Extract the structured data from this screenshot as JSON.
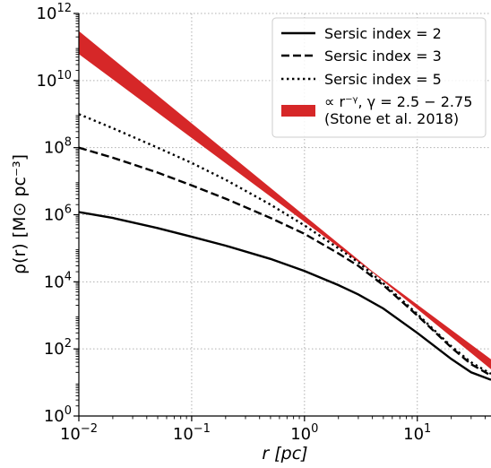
{
  "chart_data": {
    "type": "line",
    "xlabel": "r [pc]",
    "ylabel": "ρ(r) [M⊙ pc⁻³]",
    "x_scale": "log",
    "y_scale": "log",
    "xlim": [
      0.01,
      45
    ],
    "ylim": [
      1,
      1000000000000
    ],
    "grid": true,
    "legend_position": "top-right",
    "x_ticks": [
      {
        "value": 0.01,
        "base": "10",
        "exp": "−2"
      },
      {
        "value": 0.1,
        "base": "10",
        "exp": "−1"
      },
      {
        "value": 1,
        "base": "10",
        "exp": "0"
      },
      {
        "value": 10,
        "base": "10",
        "exp": "1"
      }
    ],
    "y_ticks": [
      {
        "value": 1,
        "base": "10",
        "exp": "0"
      },
      {
        "value": 100,
        "base": "10",
        "exp": "2"
      },
      {
        "value": 10000,
        "base": "10",
        "exp": "4"
      },
      {
        "value": 1000000,
        "base": "10",
        "exp": "6"
      },
      {
        "value": 100000000,
        "base": "10",
        "exp": "8"
      },
      {
        "value": 10000000000,
        "base": "10",
        "exp": "10"
      },
      {
        "value": 1000000000000,
        "base": "10",
        "exp": "12"
      }
    ],
    "series": [
      {
        "name": "Sersic index = 2",
        "style": "solid",
        "color": "#000000",
        "points": [
          [
            0.01,
            1200000
          ],
          [
            0.02,
            800000
          ],
          [
            0.05,
            400000
          ],
          [
            0.1,
            220000
          ],
          [
            0.2,
            120000
          ],
          [
            0.5,
            48000
          ],
          [
            1,
            21000
          ],
          [
            2,
            8000
          ],
          [
            3,
            4200
          ],
          [
            5,
            1600
          ],
          [
            10,
            300
          ],
          [
            20,
            50
          ],
          [
            30,
            20
          ],
          [
            45,
            12
          ]
        ]
      },
      {
        "name": "Sersic index = 3",
        "style": "dashed",
        "color": "#000000",
        "points": [
          [
            0.01,
            100000000
          ],
          [
            0.02,
            50000000
          ],
          [
            0.05,
            18000000
          ],
          [
            0.1,
            7500000
          ],
          [
            0.2,
            3000000
          ],
          [
            0.5,
            800000
          ],
          [
            1,
            270000
          ],
          [
            2,
            70000
          ],
          [
            3,
            30000
          ],
          [
            5,
            8000
          ],
          [
            10,
            1000
          ],
          [
            20,
            110
          ],
          [
            30,
            35
          ],
          [
            45,
            16
          ]
        ]
      },
      {
        "name": "Sersic index = 5",
        "style": "dotted",
        "color": "#000000",
        "points": [
          [
            0.01,
            1000000000
          ],
          [
            0.02,
            380000000
          ],
          [
            0.05,
            100000000
          ],
          [
            0.1,
            35000000
          ],
          [
            0.2,
            11000000
          ],
          [
            0.5,
            2000000
          ],
          [
            1,
            480000
          ],
          [
            2,
            100000
          ],
          [
            3,
            38000
          ],
          [
            5,
            9000
          ],
          [
            10,
            1100
          ],
          [
            20,
            120
          ],
          [
            30,
            40
          ],
          [
            45,
            18
          ]
        ]
      }
    ],
    "band": {
      "label_line1": "∝ r⁻ᵞ, γ = 2.5 − 2.75",
      "label_line2": "(Stone et al. 2018)",
      "color": "#d62728",
      "pivot_r": 4,
      "pivot_rho": 20000,
      "gamma_min": 2.5,
      "gamma_max": 2.75
    }
  }
}
